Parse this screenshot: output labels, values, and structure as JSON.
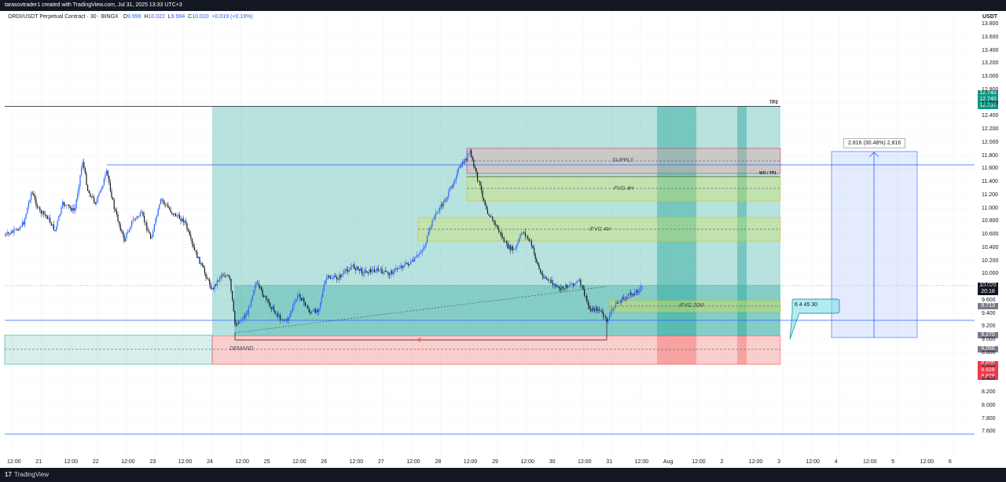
{
  "header": {
    "title": "tarasovtrader1 created with TradingView.com, Jul 31, 2025 13:33 UTC+3"
  },
  "legend": {
    "symbol": "ORDI/USDT Perpetual Contract · 30 · BINGX",
    "o_label": "O",
    "o_value": "9.999",
    "h_label": "H",
    "h_value": "10.022",
    "l_label": "L",
    "l_value": "9.994",
    "c_label": "C",
    "c_value": "10.020",
    "change": "+0.019 (+0.19%)"
  },
  "currency": "USDT",
  "price_axis": [
    "13.800",
    "13.600",
    "13.400",
    "13.200",
    "13.000",
    "12.800",
    "12.600",
    "12.400",
    "12.200",
    "12.000",
    "11.800",
    "11.600",
    "11.400",
    "11.200",
    "11.000",
    "10.800",
    "10.600",
    "10.400",
    "10.200",
    "10.000",
    "9.800",
    "9.600",
    "9.400",
    "9.200",
    "9.000",
    "8.800",
    "8.600",
    "8.400",
    "8.200",
    "8.000",
    "7.800",
    "7.600"
  ],
  "time_axis": [
    "12:00",
    "21",
    "12:00",
    "22",
    "12:00",
    "23",
    "12:00",
    "24",
    "12:00",
    "25",
    "12:00",
    "26",
    "12:00",
    "27",
    "12:00",
    "28",
    "12:00",
    "29",
    "12:00",
    "30",
    "12:00",
    "31",
    "12:00",
    "Aug",
    "12:00",
    "2",
    "12:00",
    "3",
    "12:00",
    "4",
    "12:00",
    "5",
    "12:00",
    "6"
  ],
  "price_tags": {
    "tp_upper": "12.740",
    "tp_mid": "12.740",
    "tp_lower": "12.737",
    "last_price": "10.020",
    "countdown": "20:18",
    "grey_1": "9.713",
    "grey_2": "9.270",
    "grey_3": "9.056",
    "sl_1": "8.830",
    "sl_2": "8.828",
    "sl_3": "8.828"
  },
  "zones": {
    "supply": "SUPPLY",
    "fvg4h": "FVG 4H",
    "ifvg4h": "iFVG 4H",
    "ifvg30m": "iFVG 30M",
    "demand": "DEMAND",
    "tp2": "TP2",
    "wo_tp1": "WO / TP1",
    "dollar": "$"
  },
  "measure_label": "2.816 (30.48%) 2,816",
  "callout": "6 4 45 30",
  "colors": {
    "up": "#2962ff",
    "down": "#131722",
    "teal_zone": "#26a69a",
    "red_zone": "#ef5350",
    "green_zone": "#c5e07a",
    "measure": "#2962ff"
  },
  "footer": {
    "logo": "17",
    "brand": "TradingView"
  }
}
